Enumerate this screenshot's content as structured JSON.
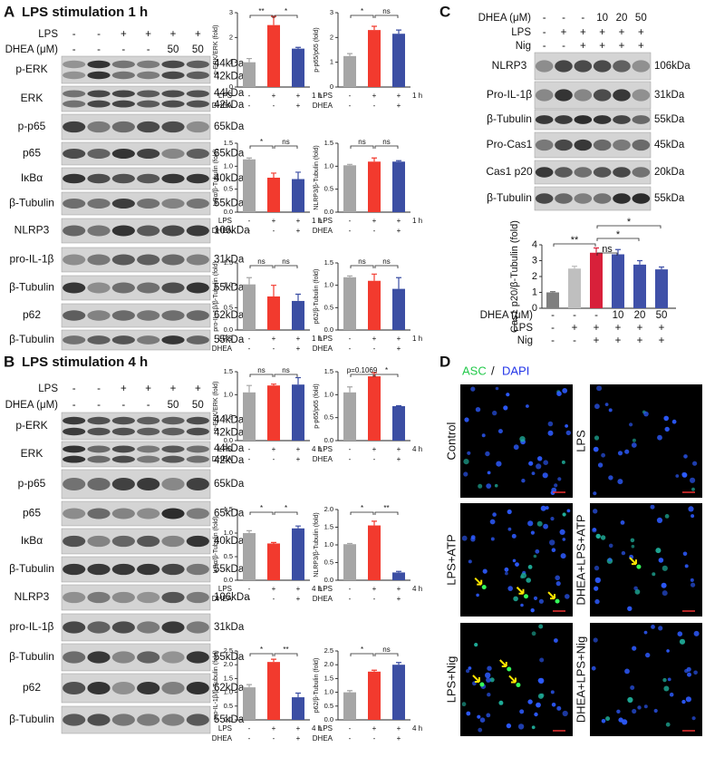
{
  "panel_A": {
    "letter": "A",
    "title": "LPS stimulation 1 h",
    "conditions": [
      {
        "name": "LPS",
        "signs": [
          "-",
          "-",
          "+",
          "+",
          "+",
          "+"
        ]
      },
      {
        "name": "DHEA (μM)",
        "signs": [
          "-",
          "-",
          "-",
          "-",
          "50",
          "50"
        ]
      }
    ],
    "blots": [
      {
        "label": "p-ERK",
        "kda": [
          "44kDa",
          "42kDa"
        ]
      },
      {
        "label": "ERK",
        "kda": [
          "44kDa",
          "42kDa"
        ]
      },
      {
        "label": "p-p65",
        "kda": [
          "65kDa"
        ]
      },
      {
        "label": "p65",
        "kda": [
          "65kDa"
        ]
      },
      {
        "label": "IκBα",
        "kda": [
          "40kDa"
        ]
      },
      {
        "label": "β-Tubulin",
        "kda": [
          "55kDa"
        ]
      },
      {
        "label": "NLRP3",
        "kda": [
          "106kDa"
        ]
      },
      {
        "label": "pro-IL-1β",
        "kda": [
          "31kDa"
        ]
      },
      {
        "label": "β-Tubulin",
        "kda": [
          "55kDa"
        ]
      },
      {
        "label": "p62",
        "kda": [
          "62kDa"
        ]
      },
      {
        "label": "β-Tubulin",
        "kda": [
          "55kDa"
        ]
      }
    ]
  },
  "panel_B": {
    "letter": "B",
    "title": "LPS stimulation 4 h",
    "conditions": [
      {
        "name": "LPS",
        "signs": [
          "-",
          "-",
          "+",
          "+",
          "+",
          "+"
        ]
      },
      {
        "name": "DHEA (μM)",
        "signs": [
          "-",
          "-",
          "-",
          "-",
          "50",
          "50"
        ]
      }
    ],
    "blots": [
      {
        "label": "p-ERK",
        "kda": [
          "44kDa",
          "42kDa"
        ]
      },
      {
        "label": "ERK",
        "kda": [
          "44kDa",
          "42kDa"
        ]
      },
      {
        "label": "p-p65",
        "kda": [
          "65kDa"
        ]
      },
      {
        "label": "p65",
        "kda": [
          "65kDa"
        ]
      },
      {
        "label": "IκBα",
        "kda": [
          "40kDa"
        ]
      },
      {
        "label": "β-Tubulin",
        "kda": [
          "55kDa"
        ]
      },
      {
        "label": "NLRP3",
        "kda": [
          "106kDa"
        ]
      },
      {
        "label": "pro-IL-1β",
        "kda": [
          "31kDa"
        ]
      },
      {
        "label": "β-Tubulin",
        "kda": [
          "55kDa"
        ]
      },
      {
        "label": "p62",
        "kda": [
          "62kDa"
        ]
      },
      {
        "label": "β-Tubulin",
        "kda": [
          "55kDa"
        ]
      }
    ]
  },
  "panel_C": {
    "letter": "C",
    "conditions": [
      {
        "name": "DHEA (μM)",
        "signs": [
          "-",
          "-",
          "-",
          "10",
          "20",
          "50"
        ]
      },
      {
        "name": "LPS",
        "signs": [
          "-",
          "+",
          "+",
          "+",
          "+",
          "+"
        ]
      },
      {
        "name": "Nig",
        "signs": [
          "-",
          "-",
          "+",
          "+",
          "+",
          "+"
        ]
      }
    ],
    "blots": [
      {
        "label": "NLRP3",
        "kda": [
          "106kDa"
        ]
      },
      {
        "label": "Pro-IL-1β",
        "kda": [
          "31kDa"
        ]
      },
      {
        "label": "β-Tubulin",
        "kda": [
          "55kDa"
        ]
      },
      {
        "label": "Pro-Cas1",
        "kda": [
          "45kDa"
        ]
      },
      {
        "label": "Cas1 p20",
        "kda": [
          "20kDa"
        ]
      },
      {
        "label": "β-Tubulin",
        "kda": [
          "55kDa"
        ]
      }
    ]
  },
  "panel_D": {
    "letter": "D",
    "legend": {
      "asc": "ASC",
      "sep": "/",
      "dapi": "DAPI"
    },
    "images": [
      {
        "label": "Control"
      },
      {
        "label": "LPS"
      },
      {
        "label": "LPS+ATP"
      },
      {
        "label": "DHEA+LPS+ATP"
      },
      {
        "label": "LPS+Nig"
      },
      {
        "label": "DHEA+LPS+Nig"
      }
    ]
  },
  "chart_data": [
    {
      "type": "bar",
      "y_label": "p-ERK/ERK (fold)",
      "values": [
        1.0,
        2.5,
        1.55
      ],
      "errors": [
        0.15,
        0.35,
        0.05
      ],
      "colors": [
        "#a6a6a6",
        "#f23a2e",
        "#3b4ea3"
      ],
      "ylim": [
        0,
        3
      ],
      "yticks": [
        0,
        1,
        2,
        3
      ],
      "significance": [
        "**",
        "*"
      ],
      "conditions": [
        {
          "name": "LPS",
          "signs": [
            "-",
            "+",
            "+"
          ]
        },
        {
          "name": "DHEA",
          "signs": [
            "-",
            "-",
            "+"
          ]
        }
      ],
      "time": "1 h"
    },
    {
      "type": "bar",
      "y_label": "p-p65/p65 (fold)",
      "values": [
        1.25,
        2.3,
        2.15
      ],
      "errors": [
        0.1,
        0.15,
        0.15
      ],
      "colors": [
        "#a6a6a6",
        "#f23a2e",
        "#3b4ea3"
      ],
      "ylim": [
        0,
        3
      ],
      "yticks": [
        0,
        1,
        2,
        3
      ],
      "significance": [
        "*",
        "ns"
      ],
      "conditions": [
        {
          "name": "LPS",
          "signs": [
            "-",
            "+",
            "+"
          ]
        },
        {
          "name": "DHEA",
          "signs": [
            "-",
            "-",
            "+"
          ]
        }
      ],
      "time": "1 h"
    },
    {
      "type": "bar",
      "y_label": "IκBα/β-Tubulin (fold)",
      "values": [
        1.15,
        0.75,
        0.72
      ],
      "errors": [
        0.03,
        0.1,
        0.15
      ],
      "colors": [
        "#a6a6a6",
        "#f23a2e",
        "#3b4ea3"
      ],
      "ylim": [
        0,
        1.5
      ],
      "yticks": [
        {
          "value": 0,
          "label": "0.0"
        },
        0.5,
        {
          "value": 1,
          "label": "1.0"
        },
        1.5
      ],
      "significance": [
        "*",
        "ns"
      ],
      "conditions": [
        {
          "name": "LPS",
          "signs": [
            "-",
            "+",
            "+"
          ]
        },
        {
          "name": "DHEA",
          "signs": [
            "-",
            "-",
            "+"
          ]
        }
      ],
      "time": "1 h"
    },
    {
      "type": "bar",
      "y_label": "NLRP3/β-Tubulin (fold)",
      "values": [
        1.02,
        1.1,
        1.1
      ],
      "errors": [
        0.02,
        0.08,
        0.02
      ],
      "colors": [
        "#a6a6a6",
        "#f23a2e",
        "#3b4ea3"
      ],
      "ylim": [
        0,
        1.5
      ],
      "yticks": [
        {
          "value": 0,
          "label": "0.0"
        },
        0.5,
        {
          "value": 1,
          "label": "1.0"
        },
        1.5
      ],
      "significance": [
        "ns",
        "ns"
      ],
      "conditions": [
        {
          "name": "LPS",
          "signs": [
            "-",
            "+",
            "+"
          ]
        },
        {
          "name": "DHEA",
          "signs": [
            "-",
            "-",
            "+"
          ]
        }
      ],
      "time": "1 h"
    },
    {
      "type": "bar",
      "y_label": "pro-IL-1β/β-Tubulin (fold)",
      "values": [
        1.02,
        0.75,
        0.65
      ],
      "errors": [
        0.15,
        0.25,
        0.15
      ],
      "colors": [
        "#a6a6a6",
        "#f23a2e",
        "#3b4ea3"
      ],
      "ylim": [
        0,
        1.5
      ],
      "yticks": [
        {
          "value": 0,
          "label": "0.0"
        },
        0.5,
        {
          "value": 1,
          "label": "1.0"
        },
        1.5
      ],
      "significance": [
        "ns",
        "ns"
      ],
      "conditions": [
        {
          "name": "LPS",
          "signs": [
            "-",
            "+",
            "+"
          ]
        },
        {
          "name": "DHEA",
          "signs": [
            "-",
            "-",
            "+"
          ]
        }
      ],
      "time": "1 h"
    },
    {
      "type": "bar",
      "y_label": "p62/β-Tubulin (fold)",
      "values": [
        1.18,
        1.1,
        0.92
      ],
      "errors": [
        0.03,
        0.15,
        0.25
      ],
      "colors": [
        "#a6a6a6",
        "#f23a2e",
        "#3b4ea3"
      ],
      "ylim": [
        0,
        1.5
      ],
      "yticks": [
        {
          "value": 0,
          "label": "0.0"
        },
        0.5,
        {
          "value": 1,
          "label": "1.0"
        },
        1.5
      ],
      "significance": [
        "ns",
        "ns"
      ],
      "conditions": [
        {
          "name": "LPS",
          "signs": [
            "-",
            "+",
            "+"
          ]
        },
        {
          "name": "DHEA",
          "signs": [
            "-",
            "-",
            "+"
          ]
        }
      ],
      "time": "1 h"
    },
    {
      "type": "bar",
      "y_label": "p-ERK/ERK (fold)",
      "values": [
        1.05,
        1.2,
        1.22
      ],
      "errors": [
        0.15,
        0.03,
        0.15
      ],
      "colors": [
        "#a6a6a6",
        "#f23a2e",
        "#3b4ea3"
      ],
      "ylim": [
        0,
        1.5
      ],
      "yticks": [
        {
          "value": 0,
          "label": "0.0"
        },
        0.5,
        {
          "value": 1,
          "label": "1.0"
        },
        1.5
      ],
      "significance": [
        "ns",
        "ns"
      ],
      "conditions": [
        {
          "name": "LPS",
          "signs": [
            "-",
            "+",
            "+"
          ]
        },
        {
          "name": "DHEA",
          "signs": [
            "-",
            "-",
            "+"
          ]
        }
      ],
      "time": "4 h"
    },
    {
      "type": "bar",
      "y_label": "p-p65/p65 (fold)",
      "values": [
        1.05,
        1.4,
        0.75
      ],
      "errors": [
        0.12,
        0.08,
        0.01
      ],
      "colors": [
        "#a6a6a6",
        "#f23a2e",
        "#3b4ea3"
      ],
      "ylim": [
        0,
        1.5
      ],
      "yticks": [
        {
          "value": 0,
          "label": "0.0"
        },
        0.5,
        {
          "value": 1,
          "label": "1.0"
        },
        1.5
      ],
      "significance": [
        "p=0.1069",
        "*"
      ],
      "conditions": [
        {
          "name": "LPS",
          "signs": [
            "-",
            "+",
            "+"
          ]
        },
        {
          "name": "DHEA",
          "signs": [
            "-",
            "-",
            "+"
          ]
        }
      ],
      "time": "4 h"
    },
    {
      "type": "bar",
      "y_label": "IκBα/β-Tubulin (fold)",
      "values": [
        1.0,
        0.78,
        1.1
      ],
      "errors": [
        0.05,
        0.02,
        0.05
      ],
      "colors": [
        "#a6a6a6",
        "#f23a2e",
        "#3b4ea3"
      ],
      "ylim": [
        0,
        1.5
      ],
      "yticks": [
        {
          "value": 0,
          "label": "0.0"
        },
        0.5,
        {
          "value": 1,
          "label": "1.0"
        },
        1.5
      ],
      "significance": [
        "*",
        "*"
      ],
      "conditions": [
        {
          "name": "LPS",
          "signs": [
            "-",
            "+",
            "+"
          ]
        },
        {
          "name": "DHEA",
          "signs": [
            "-",
            "-",
            "+"
          ]
        }
      ],
      "time": "4 h"
    },
    {
      "type": "bar",
      "y_label": "NLRP3/β-Tubulin (fold)",
      "values": [
        1.02,
        1.55,
        0.22
      ],
      "errors": [
        0.02,
        0.12,
        0.03
      ],
      "colors": [
        "#a6a6a6",
        "#f23a2e",
        "#3b4ea3"
      ],
      "ylim": [
        0,
        2
      ],
      "yticks": [
        {
          "value": 0,
          "label": "0.0"
        },
        0.5,
        {
          "value": 1,
          "label": "1.0"
        },
        1.5,
        {
          "value": 2,
          "label": "2.0"
        }
      ],
      "significance": [
        "*",
        "**"
      ],
      "conditions": [
        {
          "name": "LPS",
          "signs": [
            "-",
            "+",
            "+"
          ]
        },
        {
          "name": "DHEA",
          "signs": [
            "-",
            "-",
            "+"
          ]
        }
      ],
      "time": "4 h"
    },
    {
      "type": "bar",
      "y_label": "pro-IL-1β/β-Tubulin (fold)",
      "values": [
        1.18,
        2.1,
        0.82
      ],
      "errors": [
        0.1,
        0.1,
        0.15
      ],
      "colors": [
        "#a6a6a6",
        "#f23a2e",
        "#3b4ea3"
      ],
      "ylim": [
        0,
        2.5
      ],
      "yticks": [
        {
          "value": 0,
          "label": "0.0"
        },
        0.5,
        {
          "value": 1,
          "label": "1.0"
        },
        1.5,
        {
          "value": 2,
          "label": "2.0"
        },
        2.5
      ],
      "significance": [
        "*",
        "**"
      ],
      "conditions": [
        {
          "name": "LPS",
          "signs": [
            "-",
            "+",
            "+"
          ]
        },
        {
          "name": "DHEA",
          "signs": [
            "-",
            "-",
            "+"
          ]
        }
      ],
      "time": "4 h"
    },
    {
      "type": "bar",
      "y_label": "p62/β-Tubulin (fold)",
      "values": [
        1.0,
        1.75,
        2.0
      ],
      "errors": [
        0.06,
        0.05,
        0.08
      ],
      "colors": [
        "#a6a6a6",
        "#f23a2e",
        "#3b4ea3"
      ],
      "ylim": [
        0,
        2.5
      ],
      "yticks": [
        {
          "value": 0,
          "label": "0.0"
        },
        0.5,
        {
          "value": 1,
          "label": "1.0"
        },
        1.5,
        {
          "value": 2,
          "label": "2.0"
        },
        2.5
      ],
      "significance": [
        "*",
        "ns"
      ],
      "conditions": [
        {
          "name": "LPS",
          "signs": [
            "-",
            "+",
            "+"
          ]
        },
        {
          "name": "DHEA",
          "signs": [
            "-",
            "-",
            "+"
          ]
        }
      ],
      "time": "4 h"
    },
    {
      "type": "bar",
      "y_label": "Cas1 p20/β-Tubulin (fold)",
      "values": [
        1.0,
        2.5,
        3.5,
        3.4,
        2.75,
        2.45
      ],
      "errors": [
        0.05,
        0.15,
        0.3,
        0.3,
        0.25,
        0.15
      ],
      "colors": [
        "#7f7f7f",
        "#bfbfbf",
        "#d8203a",
        "#3f50a8",
        "#3f50a8",
        "#3f50a8"
      ],
      "ylim": [
        0,
        4
      ],
      "yticks": [
        0,
        1,
        2,
        3,
        4
      ],
      "significance": [
        "**",
        "ns",
        "*",
        "*"
      ],
      "conditions": [
        {
          "name": "DHEA (μM)",
          "signs": [
            "-",
            "-",
            "-",
            "10",
            "20",
            "50"
          ]
        },
        {
          "name": "LPS",
          "signs": [
            "-",
            "+",
            "+",
            "+",
            "+",
            "+"
          ]
        },
        {
          "name": "Nig",
          "signs": [
            "-",
            "-",
            "+",
            "+",
            "+",
            "+"
          ]
        }
      ]
    }
  ]
}
